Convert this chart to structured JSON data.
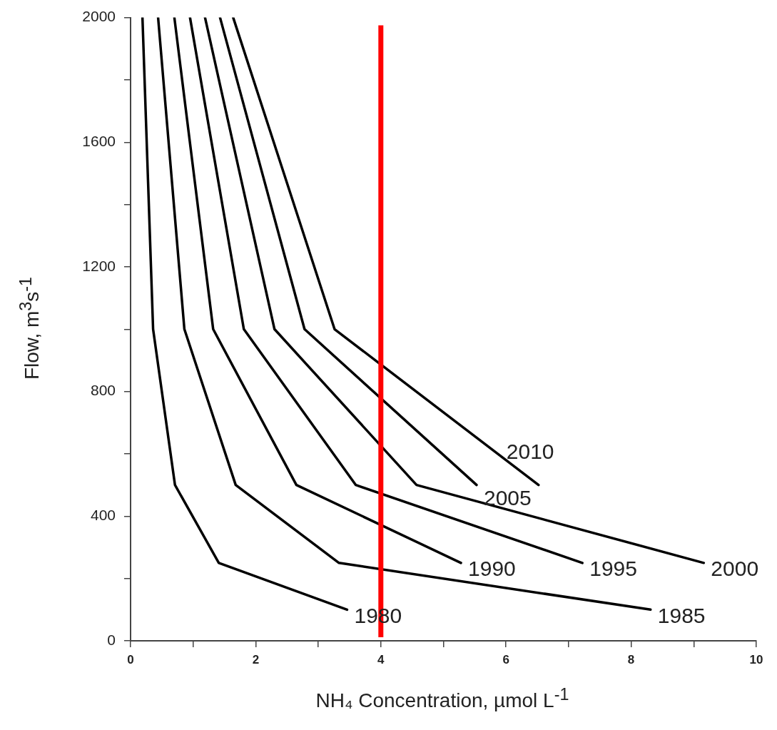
{
  "chart_data": {
    "type": "line",
    "xlabel": "NH₄ Concentration, µmol L$^{-1}$",
    "ylabel": "Flow, m$^{3}$s$^{-1}$",
    "xlim": [
      0,
      10
    ],
    "xticks": [
      0,
      {
        "value": 1,
        "label": null
      },
      2,
      {
        "value": 3,
        "label": null
      },
      4,
      {
        "value": 5,
        "label": null
      },
      6,
      {
        "value": 7,
        "label": null
      },
      8,
      {
        "value": 9,
        "label": null
      },
      10
    ],
    "ylim": [
      0,
      2000
    ],
    "yticks": [
      0,
      {
        "value": 200,
        "label": null
      },
      400,
      {
        "value": 600,
        "label": null
      },
      800,
      {
        "value": 1000,
        "label": null
      },
      1200,
      {
        "value": 1400,
        "label": null
      },
      1600,
      {
        "value": 1800,
        "label": null
      },
      2000
    ],
    "grid": false,
    "legend": false,
    "marker": "none",
    "line_style": "solid",
    "series": [
      {
        "name": "1980",
        "color": "#000000",
        "x": [
          0.19,
          0.36,
          0.71,
          1.41,
          3.46
        ],
        "values": [
          2000,
          1000,
          500,
          250,
          100
        ]
      },
      {
        "name": "1985",
        "color": "#000000",
        "x": [
          0.44,
          0.86,
          1.68,
          3.33,
          8.31
        ],
        "values": [
          2000,
          1000,
          500,
          250,
          100
        ]
      },
      {
        "name": "1990",
        "color": "#000000",
        "x": [
          0.7,
          1.32,
          2.65,
          5.28
        ],
        "values": [
          2000,
          1000,
          500,
          250
        ]
      },
      {
        "name": "1995",
        "color": "#000000",
        "x": [
          0.95,
          1.81,
          3.6,
          7.22
        ],
        "values": [
          2000,
          1000,
          500,
          250
        ]
      },
      {
        "name": "2000",
        "color": "#000000",
        "x": [
          1.19,
          2.3,
          4.57,
          9.16
        ],
        "values": [
          2000,
          1000,
          500,
          250
        ]
      },
      {
        "name": "2005",
        "color": "#000000",
        "x": [
          1.43,
          2.78,
          5.53
        ],
        "values": [
          2000,
          1000,
          500
        ]
      },
      {
        "name": "2010",
        "color": "#000000",
        "x": [
          1.64,
          3.26,
          6.52
        ],
        "values": [
          2000,
          1000,
          500
        ]
      }
    ],
    "ref_lines": [
      {
        "axis": "x",
        "value": 4,
        "color": "#ff0000"
      }
    ]
  }
}
